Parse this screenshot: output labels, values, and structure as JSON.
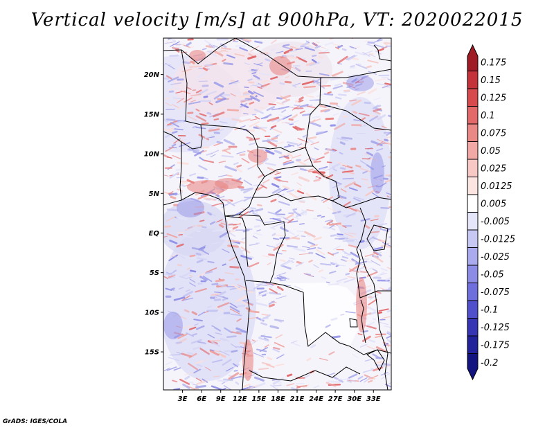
{
  "title": "Vertical velocity [m/s] at 900hPa, VT: 2020022015",
  "credit": "GrADS: IGES/COLA",
  "map": {
    "lat_labels": [
      "20N",
      "15N",
      "10N",
      "5N",
      "EQ",
      "5S",
      "10S",
      "15S"
    ],
    "lat_values": [
      20,
      15,
      10,
      5,
      0,
      -5,
      -10,
      -15
    ],
    "lon_labels": [
      "3E",
      "6E",
      "9E",
      "12E",
      "15E",
      "18E",
      "21E",
      "24E",
      "27E",
      "30E",
      "33E"
    ],
    "lon_values": [
      3,
      6,
      9,
      12,
      15,
      18,
      21,
      24,
      27,
      30,
      33
    ]
  },
  "colorbar": {
    "labels": [
      "0.175",
      "0.15",
      "0.125",
      "0.1",
      "0.075",
      "0.05",
      "0.025",
      "0.0125",
      "0.005",
      "-0.005",
      "-0.0125",
      "-0.025",
      "-0.05",
      "-0.075",
      "-0.1",
      "-0.125",
      "-0.175",
      "-0.2"
    ],
    "colors": [
      "#a01c24",
      "#c4323a",
      "#d64a4e",
      "#e2686a",
      "#ea8886",
      "#f2a8a4",
      "#f8c8c4",
      "#fce4e0",
      "#ffffff",
      "#e6e6fa",
      "#c8c8f4",
      "#aaaaee",
      "#8c8ce6",
      "#6e6edc",
      "#5050cc",
      "#3636b4",
      "#22229a",
      "#141480"
    ]
  }
}
